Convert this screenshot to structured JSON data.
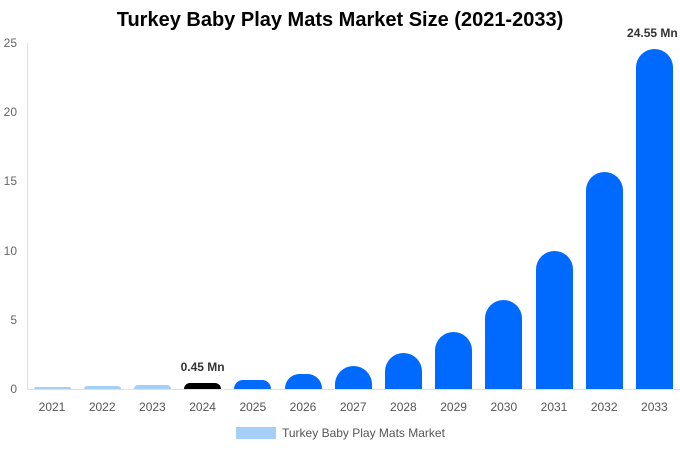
{
  "chart_data": {
    "type": "bar",
    "title": "Turkey Baby Play Mats Market Size (2021-2033)",
    "xlabel": "",
    "ylabel": "",
    "ylim": [
      0,
      25
    ],
    "yticks": [
      0,
      5,
      10,
      15,
      20,
      25
    ],
    "grid": false,
    "legend_position": "bottom",
    "categories": [
      "2021",
      "2022",
      "2023",
      "2024",
      "2025",
      "2026",
      "2027",
      "2028",
      "2029",
      "2030",
      "2031",
      "2032",
      "2033"
    ],
    "series": [
      {
        "name": "Turkey Baby Play Mats Market",
        "values": [
          0.15,
          0.22,
          0.32,
          0.45,
          0.65,
          1.05,
          1.66,
          2.6,
          4.1,
          6.4,
          10.0,
          15.7,
          24.55
        ]
      }
    ],
    "annotations": [
      {
        "category": "2024",
        "text": "0.45 Mn"
      },
      {
        "category": "2033",
        "text": "24.55 Mn"
      }
    ],
    "colors": {
      "historical": "#a6cff8",
      "base_year": "#000000",
      "forecast": "#0069fe"
    }
  },
  "legend": {
    "label": "Turkey Baby Play Mats Market"
  }
}
